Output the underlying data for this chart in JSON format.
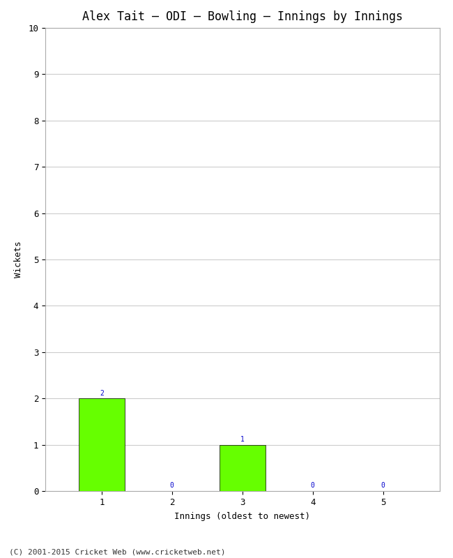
{
  "title": "Alex Tait – ODI – Bowling – Innings by Innings",
  "xlabel": "Innings (oldest to newest)",
  "ylabel": "Wickets",
  "categories": [
    1,
    2,
    3,
    4,
    5
  ],
  "values": [
    2,
    0,
    1,
    0,
    0
  ],
  "bar_color": "#66ff00",
  "bar_edge_color": "#000000",
  "ylim": [
    0,
    10
  ],
  "yticks": [
    0,
    1,
    2,
    3,
    4,
    5,
    6,
    7,
    8,
    9,
    10
  ],
  "xticks": [
    1,
    2,
    3,
    4,
    5
  ],
  "annotation_color": "#0000cc",
  "annotation_fontsize": 7,
  "title_fontsize": 12,
  "axis_label_fontsize": 9,
  "tick_fontsize": 9,
  "footer_text": "(C) 2001-2015 Cricket Web (www.cricketweb.net)",
  "footer_fontsize": 8,
  "background_color": "#ffffff",
  "grid_color": "#cccccc",
  "bar_width": 0.65
}
